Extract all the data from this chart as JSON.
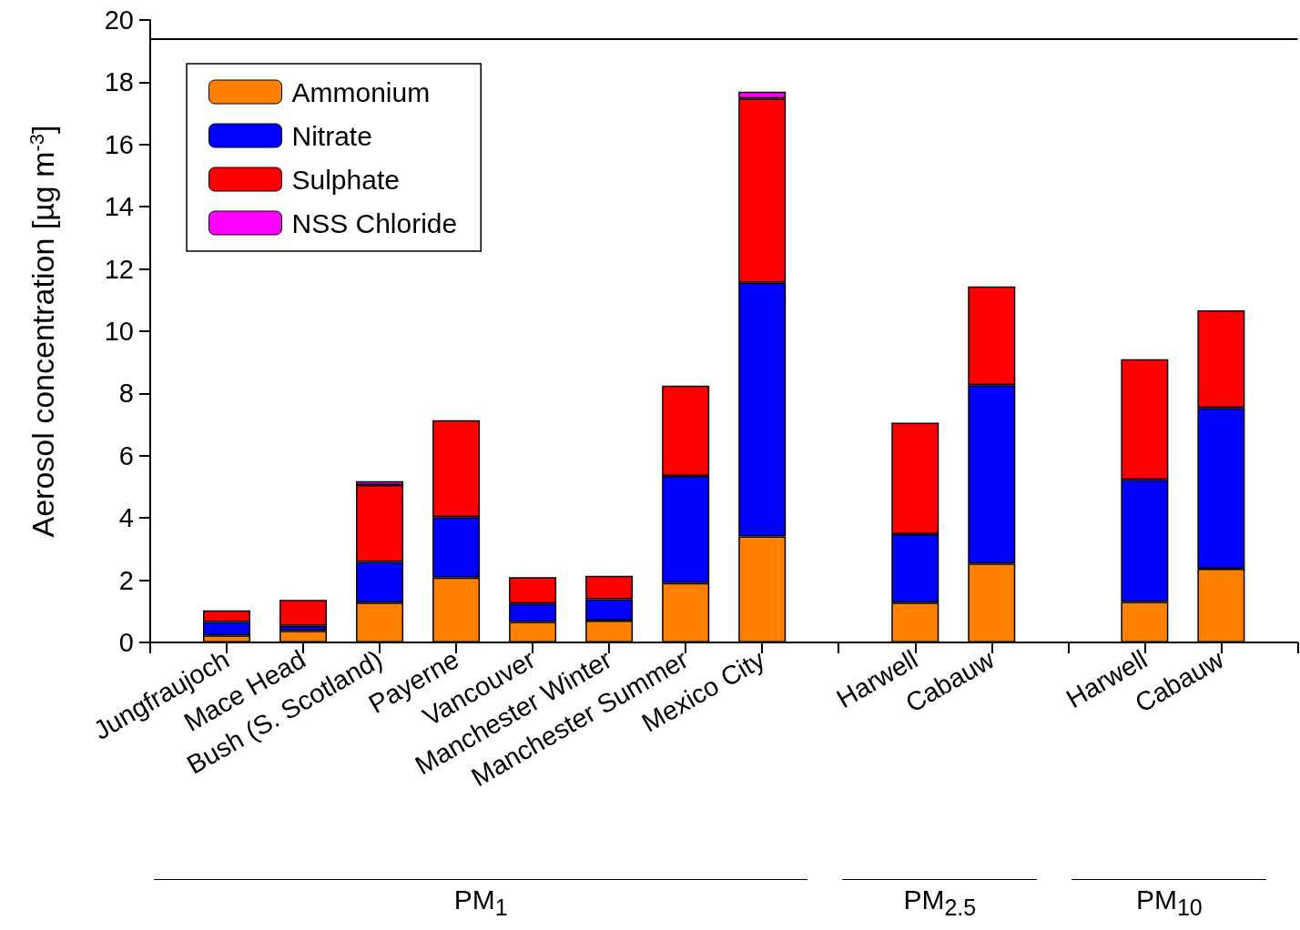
{
  "chart_data": {
    "type": "bar",
    "stacked": true,
    "ylabel": "Aerosol concentration [µg m$^{-3}$]",
    "categories": [
      null,
      "Jungfraujoch",
      "Mace Head",
      "Bush (S. Scotland)",
      "Payerne",
      "Vancouver",
      "Manchester Winter",
      "Manchester Summer",
      "Mexico City",
      null,
      "Harwell",
      "Cabauw",
      null,
      "Harwell",
      "Cabauw",
      null
    ],
    "series": [
      {
        "name": "Ammonium",
        "color": "#ff8000",
        "values": [
          null,
          0.23,
          0.37,
          1.28,
          2.08,
          0.66,
          0.7,
          1.91,
          3.41,
          null,
          1.28,
          2.54,
          null,
          1.3,
          2.37,
          null
        ]
      },
      {
        "name": "Nitrate",
        "color": "#0000ff",
        "values": [
          null,
          0.43,
          0.16,
          1.31,
          1.95,
          0.59,
          0.69,
          3.44,
          8.15,
          null,
          2.2,
          5.73,
          null,
          3.93,
          5.17,
          null
        ]
      },
      {
        "name": "Sulphate",
        "color": "#ff0000",
        "values": [
          null,
          0.37,
          0.84,
          2.47,
          3.11,
          0.85,
          0.75,
          2.9,
          5.92,
          null,
          3.58,
          3.17,
          null,
          3.87,
          3.13,
          null
        ]
      },
      {
        "name": "NSS Chloride",
        "color": "#ff00ff",
        "values": [
          null,
          null,
          null,
          0.12,
          null,
          null,
          null,
          null,
          0.22,
          null,
          null,
          null,
          null,
          null,
          null,
          null
        ]
      }
    ],
    "ylim": [
      0,
      20
    ],
    "yticks": [
      0,
      2,
      4,
      6,
      8,
      10,
      12,
      14,
      16,
      18,
      20
    ],
    "ref_lines": [
      {
        "axis": "y",
        "value": 19.4,
        "label": null,
        "color": "#000000"
      }
    ],
    "legend": "top left",
    "grid": false,
    "annotations": [
      "PM$_{1}$",
      "PM$_{2.5}$",
      "PM$_{10}$"
    ]
  }
}
